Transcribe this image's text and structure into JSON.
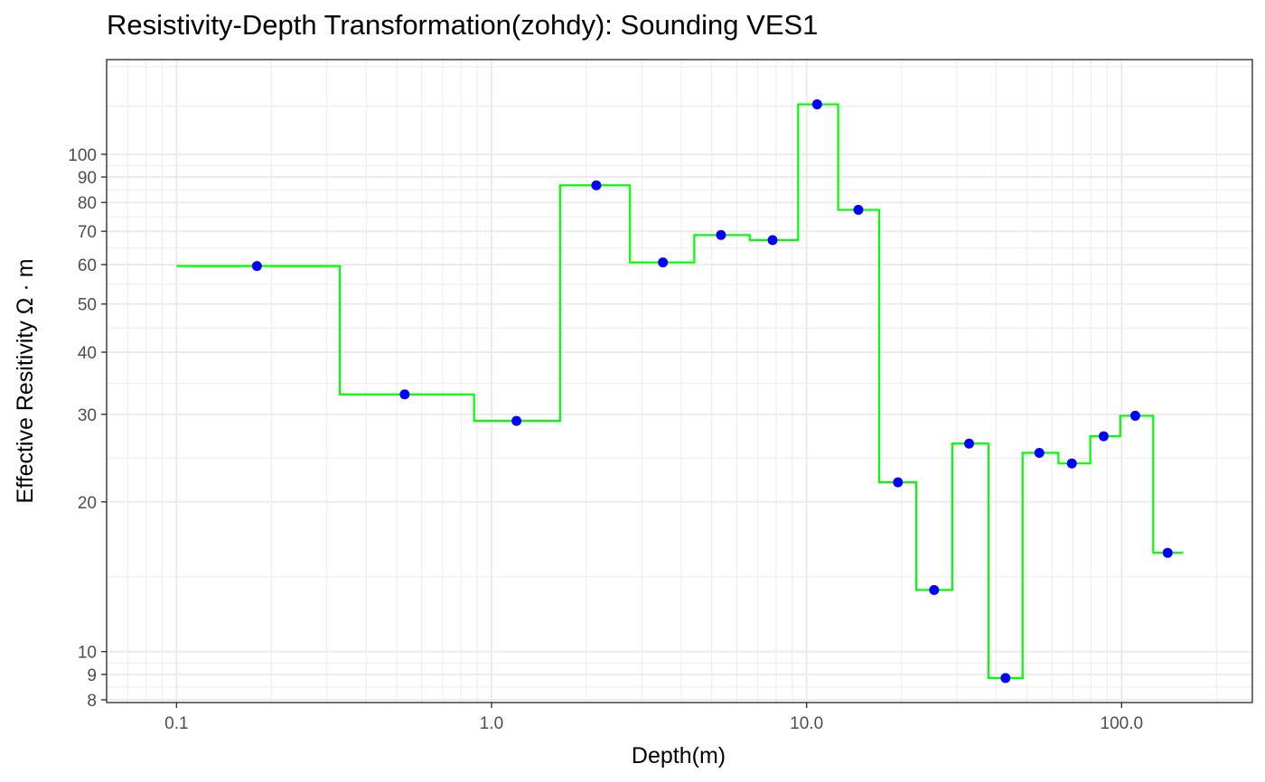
{
  "chart_data": {
    "type": "line",
    "title": "Resistivity-Depth Transformation(zohdy): Sounding VES1",
    "xlabel": "Depth(m)",
    "ylabel": "Effective Resitivity Ω · m",
    "x_scale": "log10",
    "y_scale": "log10",
    "xlim": [
      0.06,
      260
    ],
    "ylim": [
      7.9,
      155
    ],
    "x_ticks": [
      0.1,
      1.0,
      10.0,
      100.0
    ],
    "x_tick_labels": [
      "0.1",
      "1.0",
      "10.0",
      "100.0"
    ],
    "y_ticks": [
      8,
      9,
      10,
      20,
      30,
      40,
      50,
      60,
      70,
      80,
      90,
      100
    ],
    "y_tick_labels": [
      "8",
      "9",
      "10",
      "20",
      "30",
      "40",
      "50",
      "60",
      "70",
      "80",
      "90",
      "100"
    ],
    "grid": true,
    "series": [
      {
        "type": "step",
        "color": "#00ff00",
        "x": [
          0.1,
          0.33,
          0.33,
          0.88,
          0.88,
          1.65,
          1.65,
          2.75,
          2.75,
          4.4,
          4.4,
          6.6,
          6.6,
          9.4,
          9.4,
          12.6,
          12.6,
          17.0,
          17.0,
          22.3,
          22.3,
          29.0,
          29.0,
          37.8,
          37.8,
          48.5,
          48.5,
          63.0,
          63.0,
          79.5,
          79.5,
          99.0,
          99.0,
          126.0,
          126.0,
          157.0
        ],
        "y": [
          59.6,
          59.6,
          32.9,
          32.9,
          29.1,
          29.1,
          86.6,
          86.6,
          60.6,
          60.6,
          68.8,
          68.8,
          67.2,
          67.2,
          126.0,
          126.0,
          77.3,
          77.3,
          21.9,
          21.9,
          13.3,
          13.3,
          26.2,
          26.2,
          8.85,
          8.85,
          25.1,
          25.1,
          23.9,
          23.9,
          27.1,
          27.1,
          29.8,
          29.8,
          15.8,
          15.8
        ]
      },
      {
        "type": "scatter",
        "color": "#0000ff",
        "x": [
          0.18,
          0.53,
          1.2,
          2.15,
          3.5,
          5.35,
          7.8,
          10.8,
          14.6,
          19.5,
          25.4,
          32.8,
          42.8,
          54.8,
          69.5,
          87.7,
          110.5,
          140.0
        ],
        "y": [
          59.6,
          32.9,
          29.1,
          86.6,
          60.6,
          68.8,
          67.2,
          126.0,
          77.3,
          21.9,
          13.3,
          26.2,
          8.85,
          25.1,
          23.9,
          27.1,
          29.8,
          15.8
        ]
      }
    ]
  }
}
